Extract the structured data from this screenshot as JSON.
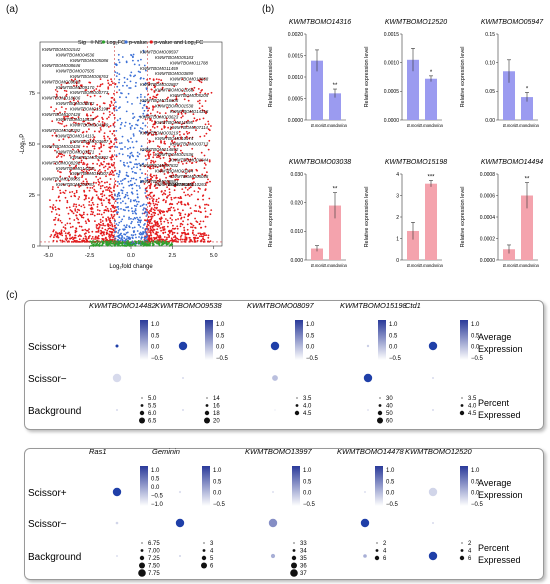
{
  "panel_labels": [
    "(a)",
    "(b)",
    "(c)"
  ],
  "colors": {
    "ns": "#7f7f7f",
    "log2fc": "#2ca02c",
    "pvalue": "#3b6fd6",
    "both": "#e31a1c",
    "bar_blue": "#9b9bf0",
    "bar_pink": "#f4a3ad",
    "dot_blue": "#1f3fa8",
    "scale_low": "#ffffff",
    "scale_high": "#2a3a9a"
  },
  "chart_data": [
    {
      "type": "scatter",
      "panel": "(a)",
      "xlabel": "Log₂fold change",
      "ylabel": "-Log₁₀P",
      "xlim": [
        -5.5,
        5.5
      ],
      "ylim": [
        0,
        100
      ],
      "x_ticks": [
        "-5.0",
        "-2.5",
        "0.0",
        "2.5",
        "5.0"
      ],
      "y_ticks": [
        "0",
        "25",
        "50",
        "75"
      ],
      "legend": {
        "title": "Sig",
        "entries": [
          "NS",
          "Log₂FC",
          "p-value",
          "p-value and Log₂FC"
        ],
        "position": "top"
      },
      "labels": [
        "KWMTBOMO01542",
        "KWMTBOMO09597",
        "KWMTBOMO04536",
        "KWMTBOMO05183",
        "KWMTBOMO05086",
        "KWMTBOMO11788",
        "KWMTBOMO08646",
        "KWMTBOMO11459",
        "KWMTBOMO07505",
        "KWMTBOMO03899",
        "KWMTBOMO06763",
        "KWMTBOMO10868",
        "KWMTBOMO09600",
        "KWMTBOMO02887",
        "KWMTBOMO09170",
        "KWMTBOMO01068",
        "KWMTBOMO00773",
        "KWMTBOMO05205",
        "KWMTBOMO18606",
        "KWMTBOMO16605",
        "KWMTBOMO05872",
        "KWMTBOMO01538",
        "KWMTBOMO15198",
        "KWMTBOMO14316",
        "KWMTBOMO07428",
        "KWMTBOMO03623",
        "KWMTBOMO10439",
        "KWMTBOMO11595",
        "KWMTBOMO04249",
        "KWMTBOMO07114",
        "KWMTBOMO06292",
        "KWMTBOMO03219",
        "KWMTBOMO14113",
        "KWMTBOMO10174",
        "KWMTBOMO03667",
        "KWMTBOMO03713",
        "KWMTBOMO02436",
        "KWMTBOMO14852",
        "KWMTBOMO03371",
        "KWMTBOMO01536",
        "KWMTBOMO06292",
        "KWMTBOMO01844",
        "KWMTBOMO08292",
        "KWMTBOMO07832",
        "KWMTBOMO14220",
        "KWMTBOMO03304",
        "KWMTBOMO10307",
        "KWMTBOMO05046",
        "KWMTBOMO09955",
        "KWMTBOMO05581",
        "KWMTBOMO00787",
        "KWMTBOMO15231",
        "KWMTBOMO10267"
      ]
    },
    {
      "type": "bar",
      "panel": "(b)",
      "ylabel": "Relative expression level",
      "categories": [
        "B.mori",
        "B.mandarina"
      ],
      "subplots": [
        {
          "title": "KWMTBOMO14316",
          "values": [
            0.00138,
            0.00062
          ],
          "errors": [
            0.00025,
            0.0001
          ],
          "ylim": [
            0,
            0.002
          ],
          "yticks": [
            "0.0000",
            "0.0005",
            "0.0010",
            "0.0015",
            "0.0020"
          ],
          "sig": "**",
          "color": "bar_blue"
        },
        {
          "title": "KWMTBOMO12520",
          "values": [
            0.00105,
            0.00072
          ],
          "errors": [
            0.0002,
            5e-05
          ],
          "ylim": [
            0,
            0.0015
          ],
          "yticks": [
            "0.0000",
            "0.0005",
            "0.0010",
            "0.0015"
          ],
          "sig": "*",
          "color": "bar_blue"
        },
        {
          "title": "KWMTBOMO05947",
          "values": [
            0.085,
            0.04
          ],
          "errors": [
            0.02,
            0.008
          ],
          "ylim": [
            0,
            0.15
          ],
          "yticks": [
            "0.00",
            "0.05",
            "0.10",
            "0.15"
          ],
          "sig": "*",
          "color": "bar_blue"
        },
        {
          "title": "KWMTBOMO03038",
          "values": [
            0.004,
            0.019
          ],
          "errors": [
            0.001,
            0.0045
          ],
          "ylim": [
            0,
            0.03
          ],
          "yticks": [
            "0.000",
            "0.010",
            "0.020",
            "0.030"
          ],
          "sig": "**",
          "color": "bar_pink"
        },
        {
          "title": "KWMTBOMO15198",
          "values": [
            1.35,
            3.55
          ],
          "errors": [
            0.4,
            0.15
          ],
          "ylim": [
            0,
            4
          ],
          "yticks": [
            "0",
            "1",
            "2",
            "3",
            "4"
          ],
          "sig": "***",
          "color": "bar_pink"
        },
        {
          "title": "KWMTBOMO14494",
          "values": [
            0.001,
            0.006
          ],
          "errors": [
            0.0004,
            0.0012
          ],
          "ylim": [
            0,
            0.008
          ],
          "yticks": [
            "0.0000",
            "0.0002",
            "0.0004",
            "0.0006",
            "0.0008"
          ],
          "sig": "**",
          "color": "bar_pink"
        }
      ]
    },
    {
      "type": "dotplot",
      "panel": "(c)",
      "rows": [
        "Scissor+",
        "Scissor−",
        "Background"
      ],
      "legend_titles": {
        "color": [
          "Average",
          "Expression"
        ],
        "size": [
          "Percent",
          "Expressed"
        ]
      },
      "groups": [
        {
          "genes": [
            {
              "name": "KWMTBOMO14482",
              "expr": [
                1.0,
                -0.5,
                -0.5
              ],
              "pct": [
                5.2,
                6.2,
                5.0
              ],
              "scale_ticks": [
                "1.0",
                "0.5",
                "0.0",
                "−0.5"
              ],
              "size_ticks": [
                "5.0",
                "5.5",
                "6.0",
                "6.5"
              ]
            },
            {
              "name": "KWMTBOMO09538",
              "expr": [
                1.0,
                -0.5,
                -0.5
              ],
              "pct": [
                19,
                13,
                13
              ],
              "scale_ticks": [
                "1.0",
                "0.5",
                "0.0",
                "−0.5"
              ],
              "size_ticks": [
                "14",
                "16",
                "18",
                "20"
              ]
            },
            {
              "name": "KWMTBOMO08097",
              "expr": [
                1.0,
                0.0,
                -1.0
              ],
              "pct": [
                4.6,
                4.1,
                3.4
              ],
              "scale_ticks": [
                "1.0",
                "0.5",
                "0.0",
                "−0.5"
              ],
              "size_ticks": [
                "3.5",
                "4.0",
                "4.5"
              ]
            },
            {
              "name": "KWMTBOMO15198",
              "expr": [
                -0.3,
                1.0,
                -0.7
              ],
              "pct": [
                20,
                45,
                18
              ],
              "scale_ticks": [
                "1.0",
                "0.5",
                "0.0",
                "−0.5"
              ],
              "size_ticks": [
                "30",
                "40",
                "50",
                "60"
              ]
            },
            {
              "name": "Ctd1",
              "expr": [
                1.0,
                -0.5,
                -0.5
              ],
              "pct": [
                4.6,
                3.4,
                3.4
              ],
              "scale_ticks": [
                "1.0",
                "0.5",
                "0.0",
                "−0.5"
              ],
              "size_ticks": [
                "3.5",
                "4.0",
                "4.5"
              ]
            }
          ]
        },
        {
          "genes": [
            {
              "name": "Ras1",
              "expr": [
                1.0,
                -0.4,
                -0.6
              ],
              "pct": [
                7.8,
                6.8,
                6.7
              ],
              "scale_ticks": [
                "1.0",
                "0.5",
                "0.0",
                "−0.5",
                "−1.0"
              ],
              "size_ticks": [
                "6.75",
                "7.00",
                "7.25",
                "7.50",
                "7.75"
              ]
            },
            {
              "name": "Geminin",
              "expr": [
                -0.6,
                1.0,
                -0.4
              ],
              "pct": [
                3.5,
                6.2,
                3.4
              ],
              "scale_ticks": [
                "1.0",
                "0.5",
                "0.0",
                "−0.5"
              ],
              "size_ticks": [
                "3",
                "4",
                "5",
                "6"
              ]
            },
            {
              "name": "KWMTBOMO13997",
              "expr": [
                -0.6,
                0.9,
                0.3
              ],
              "pct": [
                33,
                36,
                34
              ],
              "scale_ticks": [
                "1.0",
                "0.5",
                "0.0",
                "−0.5"
              ],
              "size_ticks": [
                "33",
                "34",
                "35",
                "36",
                "37"
              ]
            },
            {
              "name": "KWMTBOMO14478",
              "expr": [
                -0.6,
                1.0,
                0.3
              ],
              "pct": [
                2.5,
                5.2,
                3.2
              ],
              "scale_ticks": [
                "1.0",
                "0.5",
                "0.0",
                "−0.5"
              ],
              "size_ticks": [
                "2",
                "4",
                "6"
              ]
            },
            {
              "name": "KWMTBOMO12520",
              "expr": [
                -0.4,
                -0.5,
                1.0
              ],
              "pct": [
                2.6,
                2.4,
                2.6
              ],
              "scale_ticks": [
                "1.0",
                "0.5",
                "0.0",
                "−0.5"
              ],
              "size_ticks": [
                "2",
                "4",
                "6"
              ]
            }
          ]
        }
      ]
    }
  ]
}
